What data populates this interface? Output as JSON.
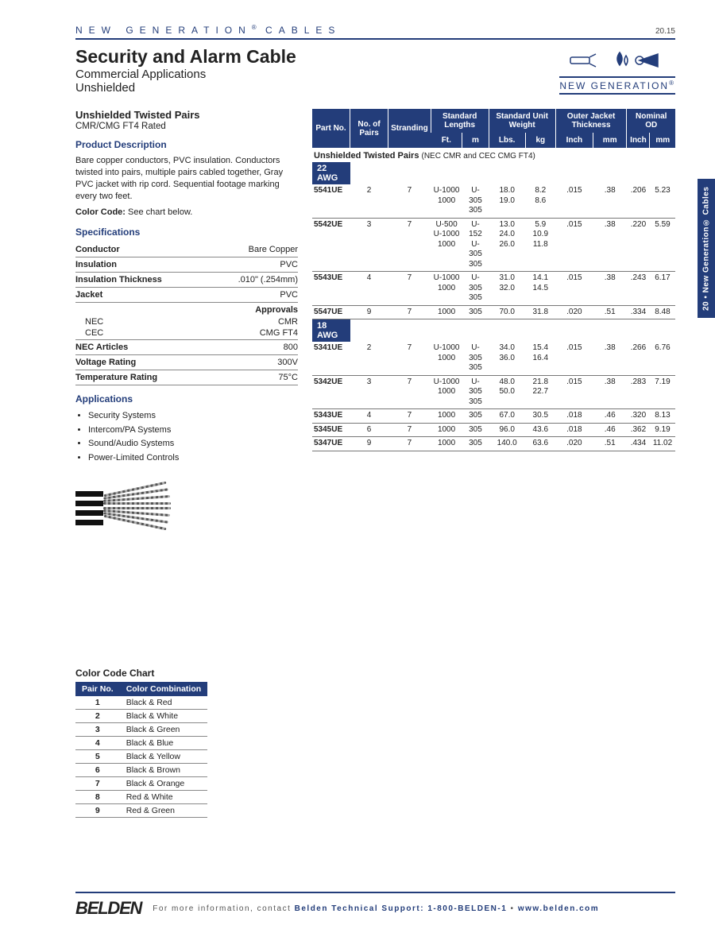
{
  "colors": {
    "brand": "#233d7a",
    "rule": "#888"
  },
  "header": {
    "brandline": "NEW GENERATION",
    "brandreg": "®",
    "brandtail": " CABLES",
    "pagenum": "20.15"
  },
  "title": {
    "main": "Security and Alarm Cable",
    "sub1": "Commercial Applications",
    "sub2": "Unshielded"
  },
  "nglogo": {
    "text": "NEW GENERATION",
    "reg": "®"
  },
  "sidetab": "20 • New Generation® Cables",
  "left": {
    "sechead": "Unshielded Twisted Pairs",
    "secsub": "CMR/CMG FT4 Rated",
    "pd_head": "Product Description",
    "pd_body": "Bare copper conductors, PVC insulation. Conductors twisted into pairs, multiple pairs cabled together, Gray PVC jacket with rip cord. Sequential footage marking every two feet.",
    "cc_label": "Color Code:",
    "cc_val": " See chart below.",
    "spec_head": "Specifications",
    "specs": [
      {
        "k": "Conductor",
        "v": "Bare Copper"
      },
      {
        "k": "Insulation",
        "v": "PVC"
      },
      {
        "k": "Insulation Thickness",
        "v": ".010\" (.254mm)"
      },
      {
        "k": "Jacket",
        "v": "PVC"
      }
    ],
    "approvals_k": "Approvals",
    "approvals": [
      {
        "k": "NEC",
        "v": "CMR"
      },
      {
        "k": "CEC",
        "v": "CMG FT4"
      }
    ],
    "specs2": [
      {
        "k": "NEC Articles",
        "v": "800"
      },
      {
        "k": "Voltage Rating",
        "v": "300V"
      },
      {
        "k": "Temperature Rating",
        "v": "75°C"
      }
    ],
    "app_head": "Applications",
    "apps": [
      "Security Systems",
      "Intercom/PA Systems",
      "Sound/Audio Systems",
      "Power-Limited Controls"
    ],
    "colorhead": "Color Code Chart",
    "colorcols": [
      "Pair No.",
      "Color Combination"
    ],
    "colors": [
      [
        "1",
        "Black & Red"
      ],
      [
        "2",
        "Black & White"
      ],
      [
        "3",
        "Black & Green"
      ],
      [
        "4",
        "Black & Blue"
      ],
      [
        "5",
        "Black & Yellow"
      ],
      [
        "6",
        "Black & Brown"
      ],
      [
        "7",
        "Black & Orange"
      ],
      [
        "8",
        "Red & White"
      ],
      [
        "9",
        "Red & Green"
      ]
    ]
  },
  "cable": {
    "head": {
      "part": "Part No.",
      "pairs": "No. of Pairs",
      "strand": "Stranding",
      "stdlen": "Standard Lengths",
      "ft": "Ft.",
      "m": "m",
      "stdwt": "Standard Unit Weight",
      "lbs": "Lbs.",
      "kg": "kg",
      "outjkt": "Outer Jacket Thickness",
      "inch": "Inch",
      "mm": "mm",
      "nomod": "Nominal OD",
      "inch2": "Inch",
      "mm2": "mm"
    },
    "group_title": "Unshielded Twisted Pairs",
    "group_note": "(NEC CMR and CEC CMG FT4)",
    "awg22": "22 AWG",
    "awg18": "18 AWG",
    "rows22": [
      {
        "pn": "5541UE",
        "pairs": "2",
        "str": "7",
        "ft": "U-1000\n1000",
        "m": "U-305\n305",
        "lbs": "18.0\n19.0",
        "kg": "8.2\n8.6",
        "in1": ".015",
        "mm1": ".38",
        "in2": ".206",
        "mm2": "5.23"
      },
      {
        "pn": "5542UE",
        "pairs": "3",
        "str": "7",
        "ft": "U-500\nU-1000\n1000",
        "m": "U-152\nU-305\n305",
        "lbs": "13.0\n24.0\n26.0",
        "kg": "5.9\n10.9\n11.8",
        "in1": ".015",
        "mm1": ".38",
        "in2": ".220",
        "mm2": "5.59"
      },
      {
        "pn": "5543UE",
        "pairs": "4",
        "str": "7",
        "ft": "U-1000\n1000",
        "m": "U-305\n305",
        "lbs": "31.0\n32.0",
        "kg": "14.1\n14.5",
        "in1": ".015",
        "mm1": ".38",
        "in2": ".243",
        "mm2": "6.17"
      },
      {
        "pn": "5547UE",
        "pairs": "9",
        "str": "7",
        "ft": "1000",
        "m": "305",
        "lbs": "70.0",
        "kg": "31.8",
        "in1": ".020",
        "mm1": ".51",
        "in2": ".334",
        "mm2": "8.48"
      }
    ],
    "rows18": [
      {
        "pn": "5341UE",
        "pairs": "2",
        "str": "7",
        "ft": "U-1000\n1000",
        "m": "U-305\n305",
        "lbs": "34.0\n36.0",
        "kg": "15.4\n16.4",
        "in1": ".015",
        "mm1": ".38",
        "in2": ".266",
        "mm2": "6.76"
      },
      {
        "pn": "5342UE",
        "pairs": "3",
        "str": "7",
        "ft": "U-1000\n1000",
        "m": "U-305\n305",
        "lbs": "48.0\n50.0",
        "kg": "21.8\n22.7",
        "in1": ".015",
        "mm1": ".38",
        "in2": ".283",
        "mm2": "7.19"
      },
      {
        "pn": "5343UE",
        "pairs": "4",
        "str": "7",
        "ft": "1000",
        "m": "305",
        "lbs": "67.0",
        "kg": "30.5",
        "in1": ".018",
        "mm1": ".46",
        "in2": ".320",
        "mm2": "8.13"
      },
      {
        "pn": "5345UE",
        "pairs": "6",
        "str": "7",
        "ft": "1000",
        "m": "305",
        "lbs": "96.0",
        "kg": "43.6",
        "in1": ".018",
        "mm1": ".46",
        "in2": ".362",
        "mm2": "9.19"
      },
      {
        "pn": "5347UE",
        "pairs": "9",
        "str": "7",
        "ft": "1000",
        "m": "305",
        "lbs": "140.0",
        "kg": "63.6",
        "in1": ".020",
        "mm1": ".51",
        "in2": ".434",
        "mm2": "11.02"
      }
    ]
  },
  "footer": {
    "logo": "BELDEN",
    "lead": "For more information, contact ",
    "hl1": "Belden Technical Support: 1-800-BELDEN-1",
    "sep": " • ",
    "hl2": "www.belden.com"
  }
}
